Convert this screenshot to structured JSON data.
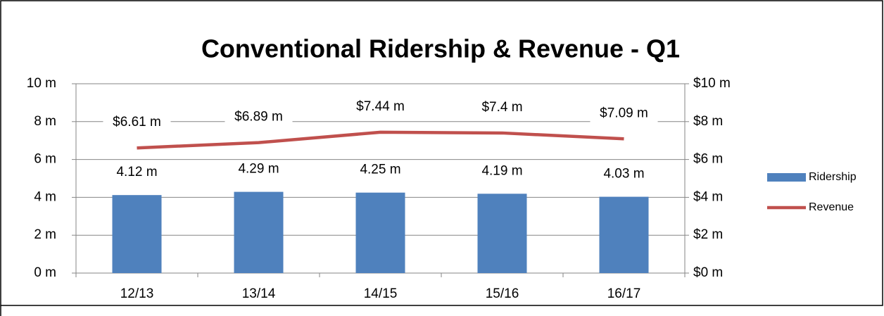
{
  "chart_data": {
    "type": "bar-line",
    "title": "Conventional Ridership & Revenue - Q1",
    "categories": [
      "12/13",
      "13/14",
      "14/15",
      "15/16",
      "16/17"
    ],
    "series": [
      {
        "name": "Ridership",
        "type": "bar",
        "color": "#4f81bd",
        "values": [
          4.12,
          4.29,
          4.25,
          4.19,
          4.03
        ],
        "value_labels": [
          "4.12 m",
          "4.29 m",
          "4.25 m",
          "4.19 m",
          "4.03 m"
        ]
      },
      {
        "name": "Revenue",
        "type": "line",
        "axis": "y2",
        "color": "#c0504d",
        "values": [
          6.61,
          6.89,
          7.44,
          7.4,
          7.09
        ],
        "value_labels": [
          "$6.61 m",
          "$6.89 m",
          "$7.44 m",
          "$7.4 m",
          "$7.09 m"
        ]
      }
    ],
    "ylim": [
      0,
      10
    ],
    "yticks": [
      {
        "value": 0,
        "label": "0 m"
      },
      {
        "value": 2,
        "label": "2 m"
      },
      {
        "value": 4,
        "label": "4 m"
      },
      {
        "value": 6,
        "label": "6 m"
      },
      {
        "value": 8,
        "label": "8 m"
      },
      {
        "value": 10,
        "label": "10 m"
      }
    ],
    "y2lim": [
      0,
      10
    ],
    "y2ticks": [
      {
        "value": 0,
        "label": "$0 m"
      },
      {
        "value": 2,
        "label": "$2 m"
      },
      {
        "value": 4,
        "label": "$4 m"
      },
      {
        "value": 6,
        "label": "$6 m"
      },
      {
        "value": 8,
        "label": "$8 m"
      },
      {
        "value": 10,
        "label": "$10 m"
      }
    ],
    "grid": true,
    "legend": "right"
  }
}
